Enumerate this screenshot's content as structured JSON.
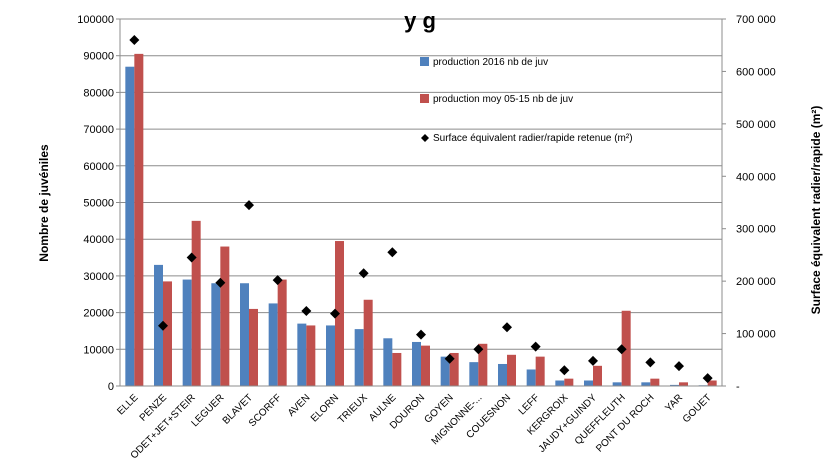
{
  "chart_data": {
    "type": "bar",
    "title": "y  g",
    "categories": [
      "ELLE",
      "PENZE",
      "ODET+JET+STEIR",
      "LEGUER",
      "BLAVET",
      "SCORFF",
      "AVEN",
      "ELORN",
      "TRIEUX",
      "AULNE",
      "DOURON",
      "GOYEN",
      "MIGNONNE-...",
      "COUESNON",
      "LEFF",
      "KERGROIX",
      "JAUDY+GUINDY",
      "QUEFFLEUTH",
      "PONT DU ROCH",
      "YAR",
      "GOUET"
    ],
    "series": [
      {
        "name": "production 2016 nb de juv",
        "color": "#4F81BD",
        "axis": "left",
        "values": [
          87000,
          33000,
          29000,
          28000,
          28000,
          22500,
          17000,
          16500,
          15500,
          13000,
          12000,
          8000,
          6500,
          6000,
          4500,
          1500,
          1500,
          1000,
          1000,
          300,
          200
        ]
      },
      {
        "name": "production moy 05-15 nb de juv",
        "color": "#C0504D",
        "axis": "left",
        "values": [
          90500,
          28500,
          45000,
          38000,
          21000,
          29000,
          16500,
          39500,
          23500,
          9000,
          11000,
          9000,
          11500,
          8500,
          8000,
          2000,
          5500,
          20500,
          2000,
          1000,
          1500
        ]
      },
      {
        "name": "Surface équivalent radier/rapide retenue (m²)",
        "color": "#000000",
        "axis": "right",
        "marker": "diamond",
        "values": [
          660000,
          115000,
          245000,
          197000,
          345000,
          202000,
          143000,
          138000,
          215000,
          255000,
          98000,
          52000,
          70000,
          112000,
          75000,
          30000,
          48000,
          70000,
          45000,
          38000,
          15000
        ]
      }
    ],
    "ylabel": "Nombre de juvéniles",
    "ylabel_right": "Surface équivalent radier/rapide (m²)",
    "ylim": [
      0,
      100000
    ],
    "ylim_right": [
      0,
      700000
    ],
    "yticks": [
      "0",
      "10000",
      "20000",
      "30000",
      "40000",
      "50000",
      "60000",
      "70000",
      "80000",
      "90000",
      "100000"
    ],
    "yticks_right": [
      "-",
      "100 000",
      "200 000",
      "300 000",
      "400 000",
      "500 000",
      "600 000",
      "700 000"
    ],
    "grid": true,
    "legend_position": "top-right"
  }
}
